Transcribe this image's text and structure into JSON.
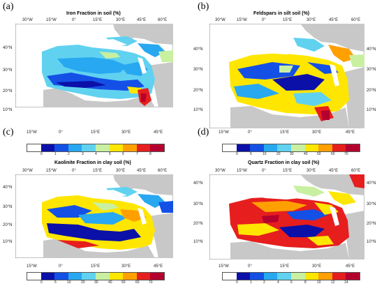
{
  "panels": [
    {
      "label": "(a)",
      "title": "Iron Fraction in soil (%)",
      "top_lons": [
        "30°W",
        "15°W",
        "0°",
        "15°E",
        "30°E",
        "45°E",
        "60°E"
      ],
      "bottom_lons": [
        "15°W",
        "0°",
        "15°E",
        "30°E",
        "45°E"
      ],
      "lats": [
        "40°N",
        "30°N",
        "20°N",
        "10°N"
      ],
      "ticks": [
        "0",
        "1",
        "2",
        "3",
        "4",
        "5",
        "6",
        "7",
        "8"
      ],
      "colors": [
        "#ffffff",
        "#0a10a8",
        "#1450e6",
        "#28a8f0",
        "#60d2f0",
        "#c8f0a0",
        "#ffe600",
        "#ffa000",
        "#e61e1e",
        "#b4002d"
      ]
    },
    {
      "label": "(b)",
      "title": "Feldspars in silt soil (%)",
      "top_lons": [
        "30°W",
        "15°W",
        "0°",
        "15°E",
        "30°E",
        "45°E",
        "60°E"
      ],
      "bottom_lons": [
        "15°W",
        "0°",
        "15°E",
        "30°E",
        "45°E"
      ],
      "lats": [
        "40°N",
        "30°N",
        "20°N",
        "10°N"
      ],
      "ticks": [
        "0",
        "5",
        "10",
        "20",
        "30",
        "40",
        "50",
        "60",
        "70"
      ],
      "colors": [
        "#ffffff",
        "#0a10a8",
        "#1450e6",
        "#28a8f0",
        "#60d2f0",
        "#c8f0a0",
        "#ffe600",
        "#ffa000",
        "#e61e1e",
        "#b4002d"
      ]
    },
    {
      "label": "(c)",
      "title": "Kaolinite Fraction in clay soil (%)",
      "top_lons": [
        "30°W",
        "15°W",
        "0°",
        "15°E",
        "30°E",
        "45°E",
        "60°E"
      ],
      "bottom_lons": [
        "15°W",
        "0°",
        "15°E",
        "30°E",
        "45°E"
      ],
      "lats": [
        "40°N",
        "30°N",
        "20°N",
        "10°N"
      ],
      "ticks": [
        "0",
        "5",
        "10",
        "20",
        "30",
        "40",
        "50",
        "60",
        "70"
      ],
      "colors": [
        "#ffffff",
        "#0a10a8",
        "#1450e6",
        "#28a8f0",
        "#60d2f0",
        "#c8f0a0",
        "#ffe600",
        "#ffa000",
        "#e61e1e",
        "#b4002d"
      ]
    },
    {
      "label": "(d)",
      "title": "Quartz Fraction in clay soil (%)",
      "top_lons": [
        "30°W",
        "15°W",
        "0°",
        "15°E",
        "30°E",
        "45°E",
        "60°E"
      ],
      "bottom_lons": [
        "15°W",
        "0°",
        "15°E",
        "30°E",
        "45°E"
      ],
      "lats": [
        "40°N",
        "30°N",
        "20°N",
        "10°N"
      ],
      "ticks": [
        "0",
        "1",
        "2",
        "4",
        "6",
        "8",
        "10",
        "12",
        "14"
      ],
      "colors": [
        "#ffffff",
        "#0a10a8",
        "#1450e6",
        "#28a8f0",
        "#60d2f0",
        "#c8f0a0",
        "#ffe600",
        "#ffa000",
        "#e61e1e",
        "#b4002d"
      ]
    }
  ]
}
